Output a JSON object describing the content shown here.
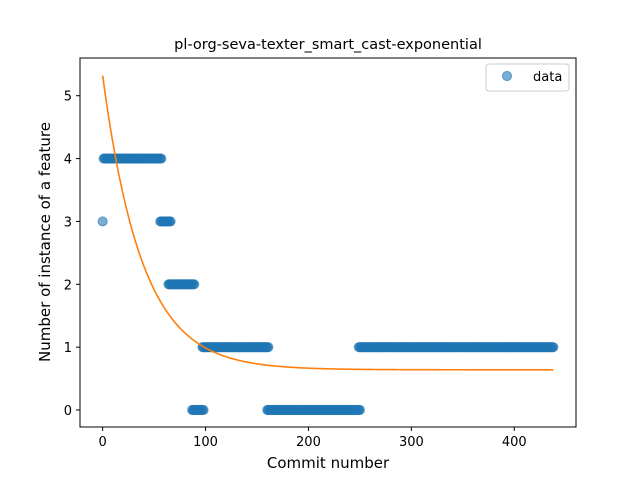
{
  "chart_data": {
    "type": "scatter",
    "title": "pl-org-seva-texter_smart_cast-exponential",
    "xlabel": "Commit number",
    "ylabel": "Number of instance of a feature",
    "xlim": [
      -22,
      460
    ],
    "ylim": [
      -0.27,
      5.6
    ],
    "xticks": [
      0,
      100,
      200,
      300,
      400
    ],
    "yticks": [
      0,
      1,
      2,
      3,
      4,
      5
    ],
    "grid": false,
    "legend_position": "top-right",
    "colors": {
      "data": "#1f77b4",
      "fit": "#ff7f0e"
    },
    "series": [
      {
        "name": "data",
        "kind": "scatter",
        "segments": [
          {
            "x_start": 0,
            "x_end": 0,
            "y": 3
          },
          {
            "x_start": 1,
            "x_end": 57,
            "y": 4
          },
          {
            "x_start": 56,
            "x_end": 66,
            "y": 3
          },
          {
            "x_start": 64,
            "x_end": 89,
            "y": 2
          },
          {
            "x_start": 87,
            "x_end": 98,
            "y": 0
          },
          {
            "x_start": 97,
            "x_end": 161,
            "y": 1
          },
          {
            "x_start": 160,
            "x_end": 250,
            "y": 0
          },
          {
            "x_start": 249,
            "x_end": 438,
            "y": 1
          }
        ]
      },
      {
        "name": "",
        "kind": "line",
        "model": "exponential",
        "params": {
          "a": 4.68,
          "b": 0.026,
          "c": 0.64
        },
        "x_range": [
          0,
          438
        ]
      }
    ]
  }
}
